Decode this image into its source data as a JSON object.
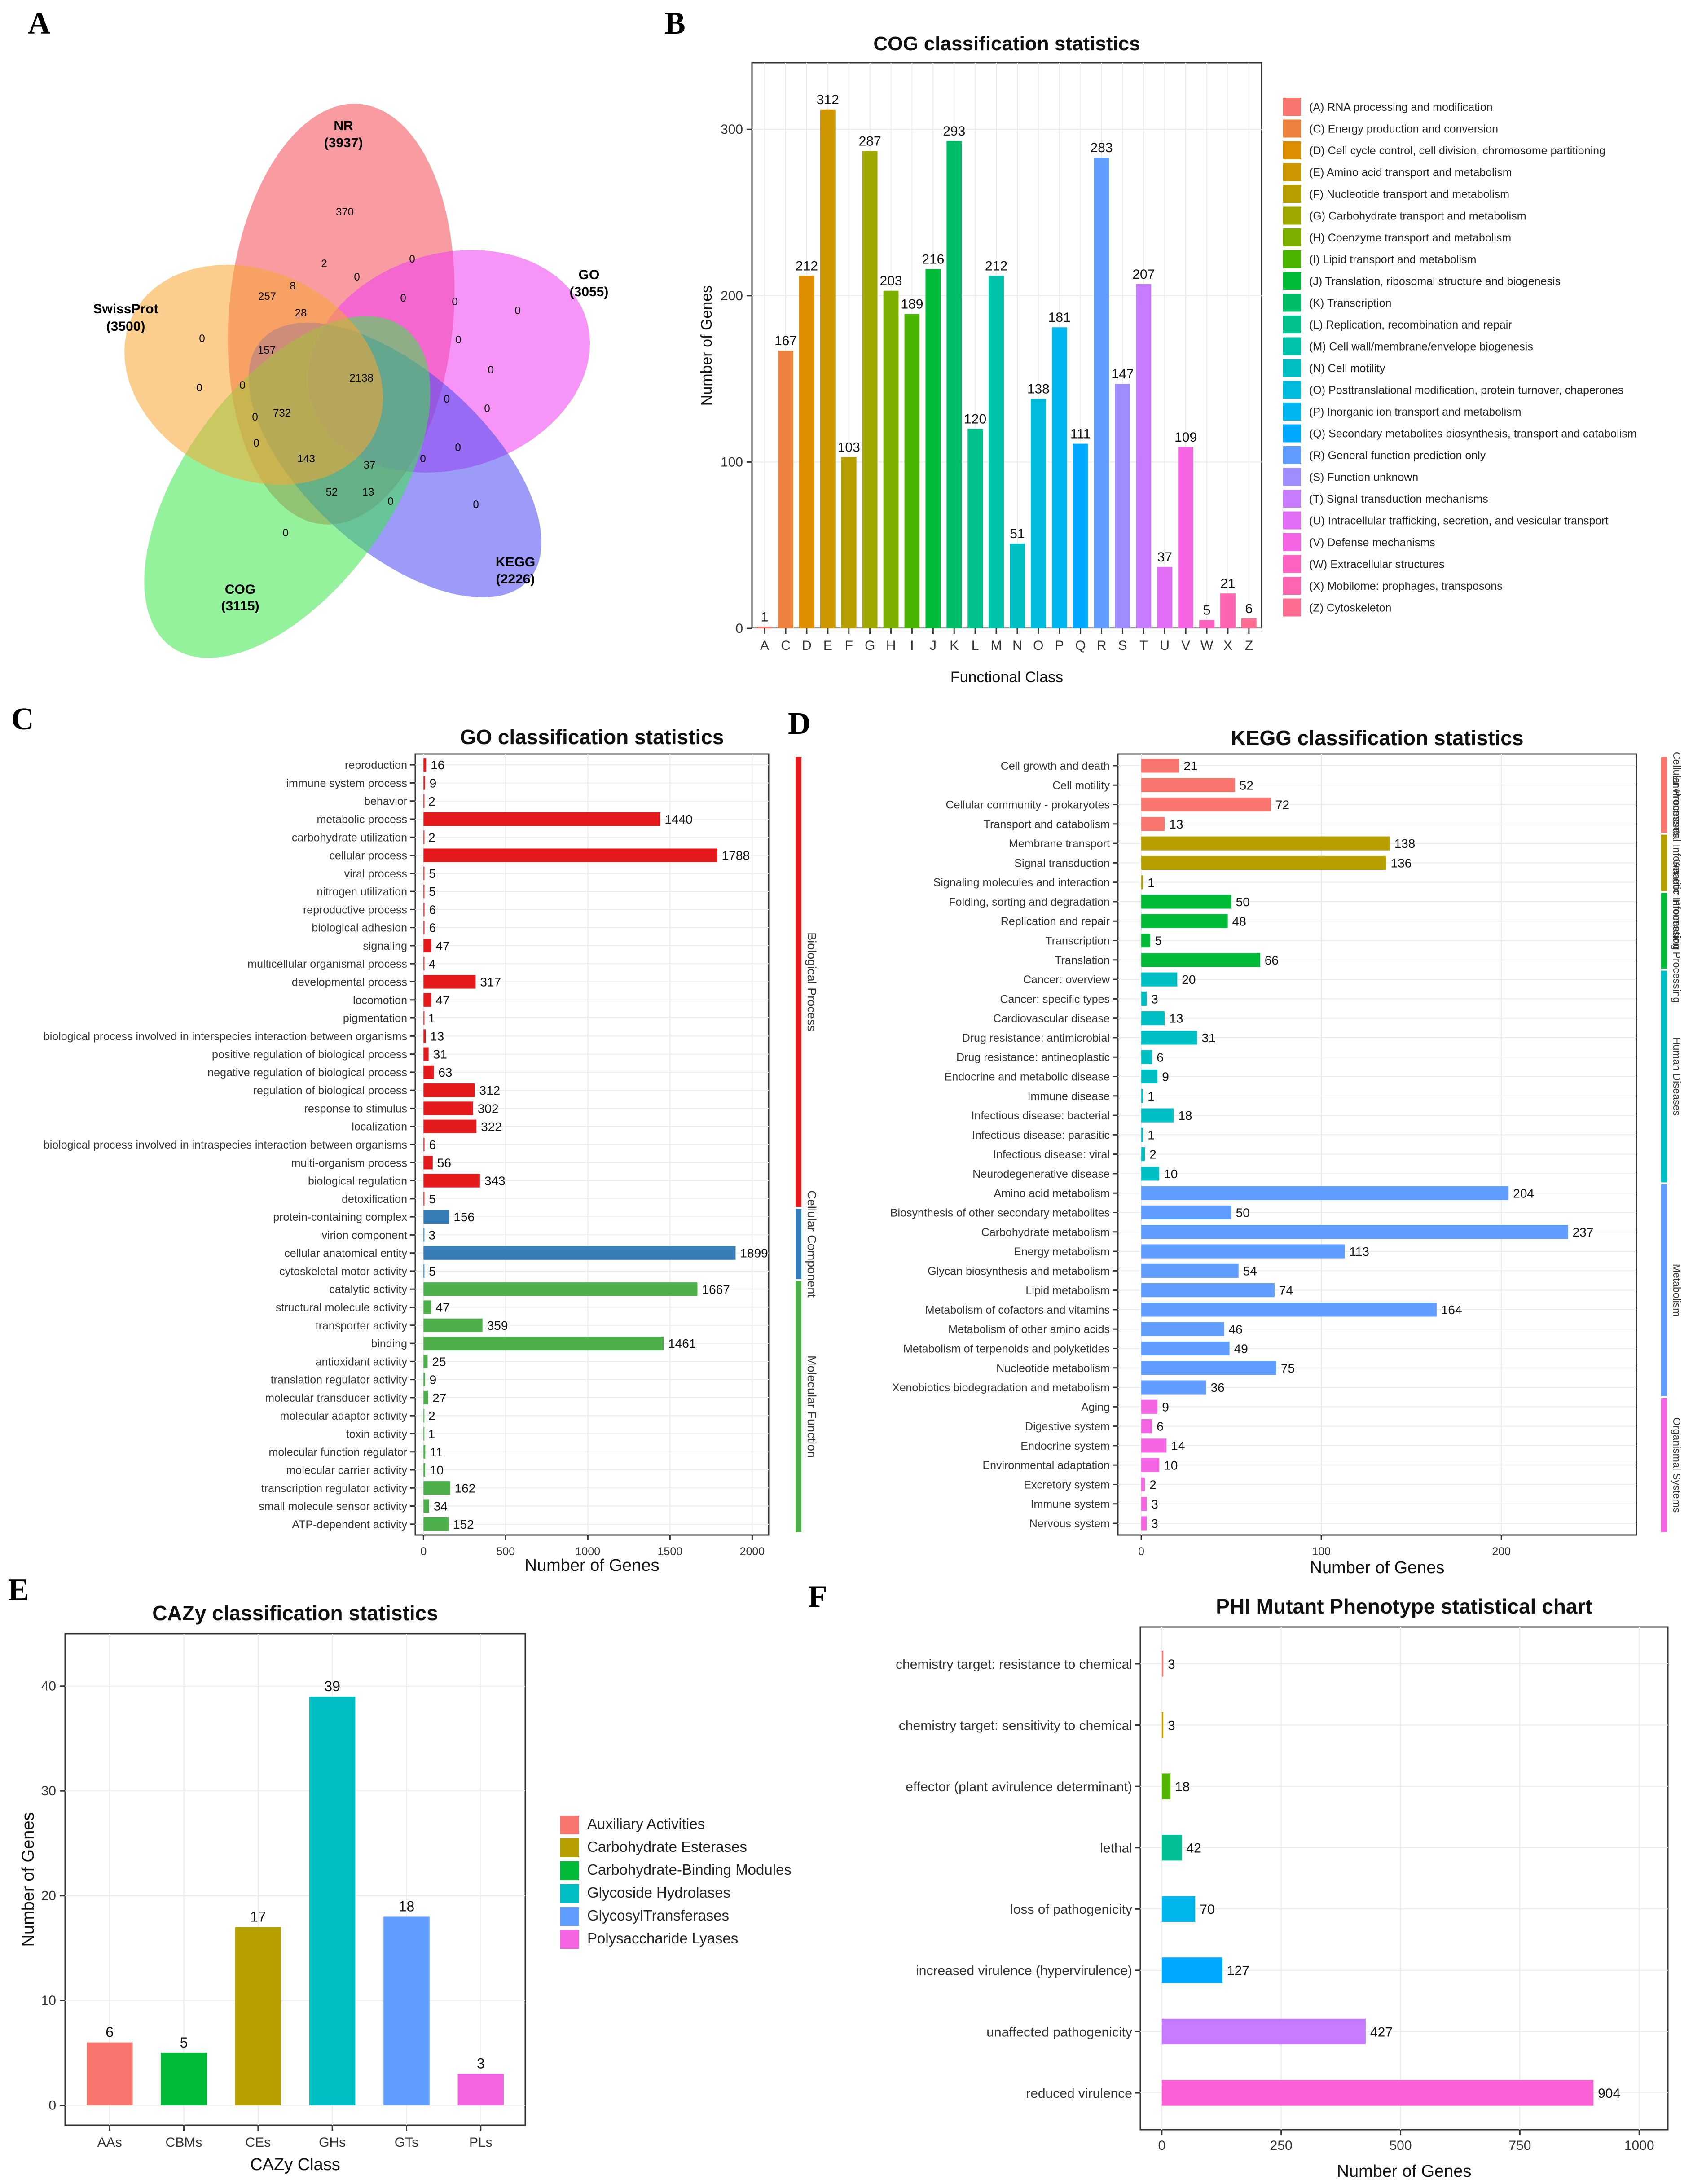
{
  "panel_letters": [
    "A",
    "B",
    "C",
    "D",
    "E",
    "F"
  ],
  "venn": {
    "sets": [
      {
        "name": "NR",
        "count": "(3937)",
        "color": "#f24a55"
      },
      {
        "name": "GO",
        "count": "(3055)",
        "color": "#ef3df2"
      },
      {
        "name": "KEGG",
        "count": "(2226)",
        "color": "#4a4af2"
      },
      {
        "name": "COG",
        "count": "(3115)",
        "color": "#3de64a"
      },
      {
        "name": "SwissProt",
        "count": "(3500)",
        "color": "#f7a531"
      }
    ],
    "region_values": [
      "370",
      "2",
      "0",
      "0",
      "257",
      "8",
      "0",
      "28",
      "0",
      "0",
      "157",
      "2138",
      "0",
      "0",
      "0",
      "0",
      "0",
      "0",
      "732",
      "0",
      "0",
      "143",
      "37",
      "0",
      "52",
      "13",
      "0",
      "0",
      "0",
      "0",
      "0"
    ]
  },
  "chart_data": [
    {
      "id": "cog",
      "type": "bar",
      "title": "COG classification statistics",
      "xlabel": "Functional Class",
      "ylabel": "Number of Genes",
      "ylim": [
        0,
        340
      ],
      "yticks": [
        0,
        100,
        200,
        300
      ],
      "categories": [
        "A",
        "C",
        "D",
        "E",
        "F",
        "G",
        "H",
        "I",
        "J",
        "K",
        "L",
        "M",
        "N",
        "O",
        "P",
        "Q",
        "R",
        "S",
        "T",
        "U",
        "V",
        "W",
        "X",
        "Z"
      ],
      "values": [
        1,
        167,
        212,
        312,
        103,
        287,
        203,
        189,
        216,
        293,
        120,
        212,
        51,
        138,
        181,
        111,
        283,
        147,
        207,
        37,
        109,
        5,
        21,
        6
      ],
      "colors": [
        "#F8766D",
        "#ED813E",
        "#DE8C00",
        "#CD9600",
        "#B79F00",
        "#9DA700",
        "#7CAE00",
        "#49B500",
        "#00BA38",
        "#00BE67",
        "#00C08B",
        "#00C1A9",
        "#00BFC4",
        "#00BBDC",
        "#00B4EF",
        "#00A9FF",
        "#619CFF",
        "#9F8CFF",
        "#C77CFF",
        "#E36EF6",
        "#F564E3",
        "#FF61C3",
        "#FF64B0",
        "#FF6C91"
      ],
      "legend": [
        "(A) RNA processing and modification",
        "(C) Energy production and conversion",
        "(D) Cell cycle control, cell division, chromosome partitioning",
        "(E) Amino acid transport and metabolism",
        "(F) Nucleotide transport and metabolism",
        "(G) Carbohydrate transport and metabolism",
        "(H) Coenzyme transport and metabolism",
        "(I) Lipid transport and metabolism",
        "(J) Translation, ribosomal structure and biogenesis",
        "(K) Transcription",
        "(L) Replication, recombination and repair",
        "(M) Cell wall/membrane/envelope biogenesis",
        "(N) Cell motility",
        "(O) Posttranslational modification, protein turnover, chaperones",
        "(P) Inorganic ion transport and metabolism",
        "(Q) Secondary metabolites biosynthesis, transport and catabolism",
        "(R) General function prediction only",
        "(S) Function unknown",
        "(T) Signal transduction mechanisms",
        "(U) Intracellular trafficking, secretion, and vesicular transport",
        "(V) Defense mechanisms",
        "(W) Extracellular structures",
        "(X) Mobilome: prophages, transposons",
        "(Z) Cytoskeleton"
      ]
    },
    {
      "id": "go",
      "type": "hbar",
      "title": "GO classification statistics",
      "xlabel": "Number of Genes",
      "ylabel": "",
      "xlim": [
        -50,
        2100
      ],
      "xticks": [
        0,
        500,
        1000,
        1500,
        2000
      ],
      "categories": [
        "reproduction",
        "immune system process",
        "behavior",
        "metabolic process",
        "carbohydrate utilization",
        "cellular process",
        "viral process",
        "nitrogen utilization",
        "reproductive process",
        "biological adhesion",
        "signaling",
        "multicellular organismal process",
        "developmental process",
        "locomotion",
        "pigmentation",
        "biological process involved in interspecies interaction between organisms",
        "positive regulation of biological process",
        "negative regulation of biological process",
        "regulation of biological process",
        "response to stimulus",
        "localization",
        "biological process involved in intraspecies interaction between organisms",
        "multi-organism process",
        "biological regulation",
        "detoxification",
        "protein-containing complex",
        "virion component",
        "cellular anatomical entity",
        "cytoskeletal motor activity",
        "catalytic activity",
        "structural molecule activity",
        "transporter activity",
        "binding",
        "antioxidant activity",
        "translation regulator activity",
        "molecular transducer activity",
        "molecular adaptor activity",
        "toxin activity",
        "molecular function regulator",
        "molecular carrier activity",
        "transcription regulator activity",
        "small molecule sensor activity",
        "ATP-dependent activity"
      ],
      "values": [
        16,
        9,
        2,
        1440,
        2,
        1788,
        5,
        5,
        6,
        6,
        47,
        4,
        317,
        47,
        1,
        13,
        31,
        63,
        312,
        302,
        322,
        6,
        56,
        343,
        5,
        156,
        3,
        1899,
        5,
        1667,
        47,
        359,
        1461,
        25,
        9,
        27,
        2,
        1,
        11,
        10,
        162,
        34,
        152
      ],
      "groups": [
        {
          "name": "Biological Process",
          "start": 0,
          "end": 24,
          "color": "#E41A1C"
        },
        {
          "name": "Cellular Component",
          "start": 25,
          "end": 28,
          "color": "#377EB8"
        },
        {
          "name": "Molecular Function",
          "start": 29,
          "end": 42,
          "color": "#4DAF4A"
        }
      ]
    },
    {
      "id": "kegg",
      "type": "hbar",
      "title": "KEGG classification statistics",
      "xlabel": "Number of Genes",
      "ylabel": "",
      "xlim": [
        -13,
        275
      ],
      "xticks": [
        0,
        100,
        200
      ],
      "categories": [
        "Cell growth and death",
        "Cell motility",
        "Cellular community - prokaryotes",
        "Transport and catabolism",
        "Membrane transport",
        "Signal transduction",
        "Signaling molecules and interaction",
        "Folding, sorting and degradation",
        "Replication and repair",
        "Transcription",
        "Translation",
        "Cancer: overview",
        "Cancer: specific types",
        "Cardiovascular disease",
        "Drug resistance: antimicrobial",
        "Drug resistance: antineoplastic",
        "Endocrine and metabolic disease",
        "Immune disease",
        "Infectious disease: bacterial",
        "Infectious disease: parasitic",
        "Infectious disease: viral",
        "Neurodegenerative disease",
        "Amino acid metabolism",
        "Biosynthesis of other secondary metabolites",
        "Carbohydrate metabolism",
        "Energy metabolism",
        "Glycan biosynthesis and metabolism",
        "Lipid metabolism",
        "Metabolism of cofactors and vitamins",
        "Metabolism of other amino acids",
        "Metabolism of terpenoids and polyketides",
        "Nucleotide metabolism",
        "Xenobiotics biodegradation and metabolism",
        "Aging",
        "Digestive system",
        "Endocrine system",
        "Environmental adaptation",
        "Excretory system",
        "Immune system",
        "Nervous system"
      ],
      "values": [
        21,
        52,
        72,
        13,
        138,
        136,
        1,
        50,
        48,
        5,
        66,
        20,
        3,
        13,
        31,
        6,
        9,
        1,
        18,
        1,
        2,
        10,
        204,
        50,
        237,
        113,
        54,
        74,
        164,
        46,
        49,
        75,
        36,
        9,
        6,
        14,
        10,
        2,
        3,
        3
      ],
      "groups": [
        {
          "name": "Cellular Processes",
          "start": 0,
          "end": 3,
          "color": "#F8766D"
        },
        {
          "name": "Environmental Information Processing",
          "start": 4,
          "end": 6,
          "color": "#B79F00"
        },
        {
          "name": "Genetic Information Processing",
          "start": 7,
          "end": 10,
          "color": "#00BA38"
        },
        {
          "name": "Human Diseases",
          "start": 11,
          "end": 21,
          "color": "#00BFC4"
        },
        {
          "name": "Metabolism",
          "start": 22,
          "end": 32,
          "color": "#619CFF"
        },
        {
          "name": "Organismal Systems",
          "start": 33,
          "end": 39,
          "color": "#F564E3"
        }
      ]
    },
    {
      "id": "cazy",
      "type": "bar",
      "title": "CAZy classification statistics",
      "xlabel": "CAZy Class",
      "ylabel": "Number of Genes",
      "ylim": [
        -1.9,
        45
      ],
      "yticks": [
        0,
        10,
        20,
        30,
        40
      ],
      "categories": [
        "AAs",
        "CBMs",
        "CEs",
        "GHs",
        "GTs",
        "PLs"
      ],
      "values": [
        6,
        5,
        17,
        39,
        18,
        3
      ],
      "colors": [
        "#F8766D",
        "#00BA38",
        "#B79F00",
        "#00BFC4",
        "#619CFF",
        "#F564E3"
      ],
      "bar_colors": [
        "#F8766D",
        "#00BA38",
        "#B79F00",
        "#00BFC4",
        "#619CFF",
        "#F564E3"
      ],
      "legend": [
        "Auxiliary Activities",
        "Carbohydrate Esterases",
        "Carbohydrate-Binding Modules",
        "Glycoside Hydrolases",
        "GlycosylTransferases",
        "Polysaccharide Lyases"
      ],
      "legend_colors": [
        "#F8766D",
        "#B79F00",
        "#00BA38",
        "#00BFC4",
        "#619CFF",
        "#F564E3"
      ]
    },
    {
      "id": "phi",
      "type": "hbar",
      "title": "PHI Mutant Phenotype statistical chart",
      "xlabel": "Number of Genes",
      "ylabel": "",
      "xlim": [
        -45,
        1060
      ],
      "xticks": [
        0,
        250,
        500,
        750,
        1000
      ],
      "categories": [
        "chemistry target: resistance to chemical",
        "chemistry target: sensitivity to chemical",
        "effector (plant avirulence determinant)",
        "lethal",
        "loss of pathogenicity",
        "increased virulence (hypervirulence)",
        "unaffected pathogenicity",
        "reduced virulence"
      ],
      "values": [
        3,
        3,
        18,
        42,
        70,
        127,
        427,
        904
      ],
      "colors": [
        "#F8766D",
        "#C49A00",
        "#53B400",
        "#00C094",
        "#00B6EB",
        "#00A9FF",
        "#C77CFF",
        "#FB61D7"
      ]
    }
  ]
}
